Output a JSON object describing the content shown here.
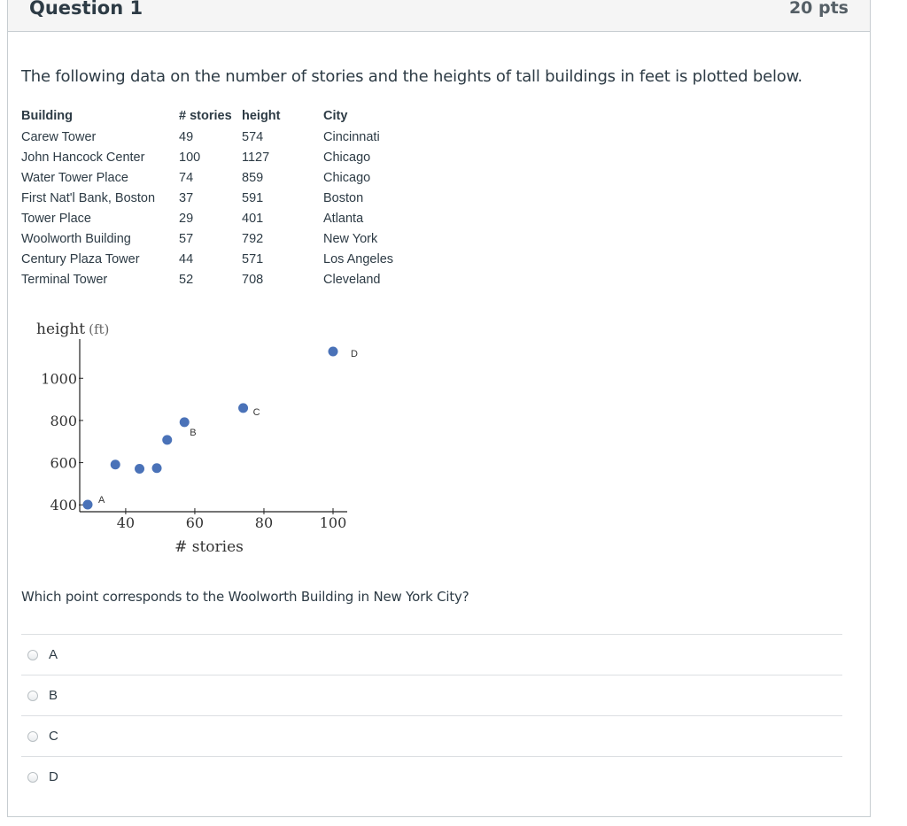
{
  "header": {
    "title": "Question 1",
    "points": "20 pts"
  },
  "prompt": "The following data on the number of stories and the heights of tall buildings in feet is plotted below.",
  "table": {
    "headers": [
      "Building",
      "# stories",
      "height",
      "City"
    ],
    "rows": [
      [
        "Carew Tower",
        "49",
        "574",
        "Cincinnati"
      ],
      [
        "John Hancock Center",
        "100",
        "1127",
        "Chicago"
      ],
      [
        "Water Tower Place",
        "74",
        "859",
        "Chicago"
      ],
      [
        "First Nat'l Bank, Boston",
        "37",
        "591",
        "Boston"
      ],
      [
        "Tower Place",
        "29",
        "401",
        "Atlanta"
      ],
      [
        "Woolworth Building",
        "57",
        "792",
        "New York"
      ],
      [
        "Century Plaza Tower",
        "44",
        "571",
        "Los Angeles"
      ],
      [
        "Terminal Tower",
        "52",
        "708",
        "Cleveland"
      ]
    ]
  },
  "chart_data": {
    "type": "scatter",
    "ylabel_main": "height",
    "ylabel_unit": "(ft)",
    "xlabel": "# stories",
    "xlim": [
      29,
      100
    ],
    "ylim": [
      400,
      1127
    ],
    "xticks": [
      40,
      60,
      80,
      100
    ],
    "yticks": [
      400,
      600,
      800,
      1000
    ],
    "point_color": "#4a72b8",
    "points": [
      {
        "x": 29,
        "y": 401,
        "label": "A"
      },
      {
        "x": 37,
        "y": 591,
        "label": ""
      },
      {
        "x": 44,
        "y": 571,
        "label": ""
      },
      {
        "x": 49,
        "y": 574,
        "label": ""
      },
      {
        "x": 52,
        "y": 708,
        "label": ""
      },
      {
        "x": 57,
        "y": 792,
        "label": "B"
      },
      {
        "x": 74,
        "y": 859,
        "label": "C"
      },
      {
        "x": 100,
        "y": 1127,
        "label": "D"
      }
    ]
  },
  "question": "Which point corresponds to the Woolworth Building in New York City?",
  "answers": [
    {
      "label": "A"
    },
    {
      "label": "B"
    },
    {
      "label": "C"
    },
    {
      "label": "D"
    }
  ]
}
